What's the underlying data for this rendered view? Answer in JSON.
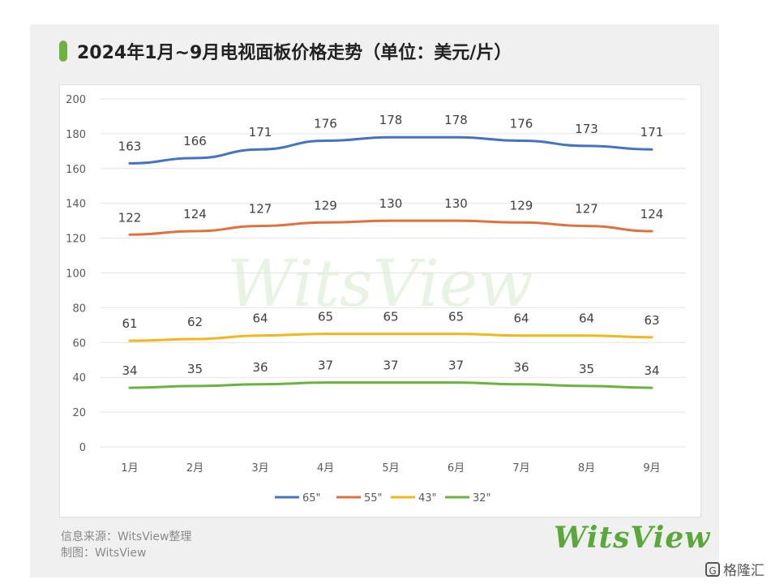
{
  "title": "2024年1月~9月电视面板价格走势（单位：美元/片）",
  "watermark": "WitsView",
  "source_line": "信息来源：WitsView整理",
  "made_by_line": "制图：WitsView",
  "brand_logo": "WitsView",
  "corner_mark": "格隆汇",
  "corner_icon": "G",
  "colors": {
    "accent": "#6db33f",
    "s65": "#4472c4",
    "s55": "#e0703c",
    "s43": "#f2b71b",
    "s32": "#6bb33f"
  },
  "chart_data": {
    "type": "line",
    "x": [
      "1月",
      "2月",
      "3月",
      "4月",
      "5月",
      "6月",
      "7月",
      "8月",
      "9月"
    ],
    "ylim": [
      0,
      200
    ],
    "yticks": [
      0,
      20,
      40,
      60,
      80,
      100,
      120,
      140,
      160,
      180,
      200
    ],
    "grid": true,
    "legend_position": "bottom",
    "series": [
      {
        "name": "65\"",
        "color": "#4472c4",
        "values": [
          163,
          166,
          171,
          176,
          178,
          178,
          176,
          173,
          171
        ]
      },
      {
        "name": "55\"",
        "color": "#e0703c",
        "values": [
          122,
          124,
          127,
          129,
          130,
          130,
          129,
          127,
          124
        ]
      },
      {
        "name": "43\"",
        "color": "#f2b71b",
        "values": [
          61,
          62,
          64,
          65,
          65,
          65,
          64,
          64,
          63
        ]
      },
      {
        "name": "32\"",
        "color": "#6bb33f",
        "values": [
          34,
          35,
          36,
          37,
          37,
          37,
          36,
          35,
          34
        ]
      }
    ]
  }
}
